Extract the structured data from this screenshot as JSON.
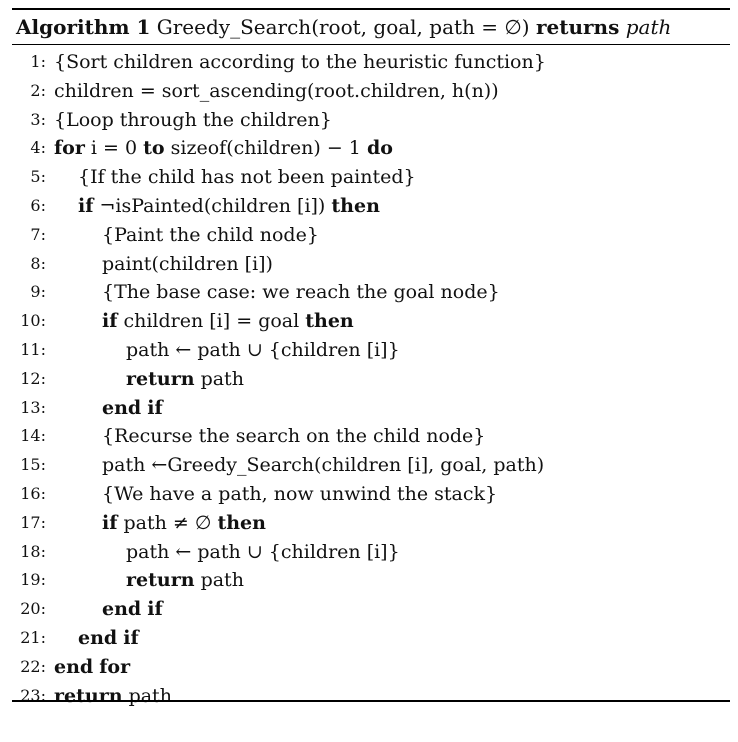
{
  "algorithm": {
    "label": "Algorithm 1",
    "name": "Greedy_Search",
    "params": "(root, goal, path = ∅)",
    "returns_kw": "returns",
    "returns_val": "path"
  },
  "lines": [
    {
      "num": "1:",
      "indent": 0,
      "text": "{Sort children according to the heuristic function}"
    },
    {
      "num": "2:",
      "indent": 0,
      "text": "children = sort_ascending(root.children, h(n))"
    },
    {
      "num": "3:",
      "indent": 0,
      "text": "{Loop through the children}"
    },
    {
      "num": "4:",
      "indent": 0,
      "text": "for i = 0 to sizeof(children) − 1 do"
    },
    {
      "num": "5:",
      "indent": 1,
      "text": "{If the child has not been painted}"
    },
    {
      "num": "6:",
      "indent": 1,
      "text": "if ¬isPainted(children [i]) then"
    },
    {
      "num": "7:",
      "indent": 2,
      "text": "{Paint the child node}"
    },
    {
      "num": "8:",
      "indent": 2,
      "text": "paint(children [i])"
    },
    {
      "num": "9:",
      "indent": 2,
      "text": "{The base case: we reach the goal node}"
    },
    {
      "num": "10:",
      "indent": 2,
      "text": "if children [i] = goal then"
    },
    {
      "num": "11:",
      "indent": 3,
      "text": "path ← path ∪ {children [i]}"
    },
    {
      "num": "12:",
      "indent": 3,
      "text": "return path"
    },
    {
      "num": "13:",
      "indent": 2,
      "text": "end if"
    },
    {
      "num": "14:",
      "indent": 2,
      "text": "{Recurse the search on the child node}"
    },
    {
      "num": "15:",
      "indent": 2,
      "text": "path ←Greedy_Search(children [i], goal, path)"
    },
    {
      "num": "16:",
      "indent": 2,
      "text": "{We have a path, now unwind the stack}"
    },
    {
      "num": "17:",
      "indent": 2,
      "text": "if path ≠ ∅ then"
    },
    {
      "num": "18:",
      "indent": 3,
      "text": "path ← path ∪ {children [i]}"
    },
    {
      "num": "19:",
      "indent": 3,
      "text": "return path"
    },
    {
      "num": "20:",
      "indent": 2,
      "text": "end if"
    },
    {
      "num": "21:",
      "indent": 1,
      "text": "end if"
    },
    {
      "num": "22:",
      "indent": 0,
      "text": "end for"
    },
    {
      "num": "23:",
      "indent": 0,
      "text": "return path"
    }
  ]
}
